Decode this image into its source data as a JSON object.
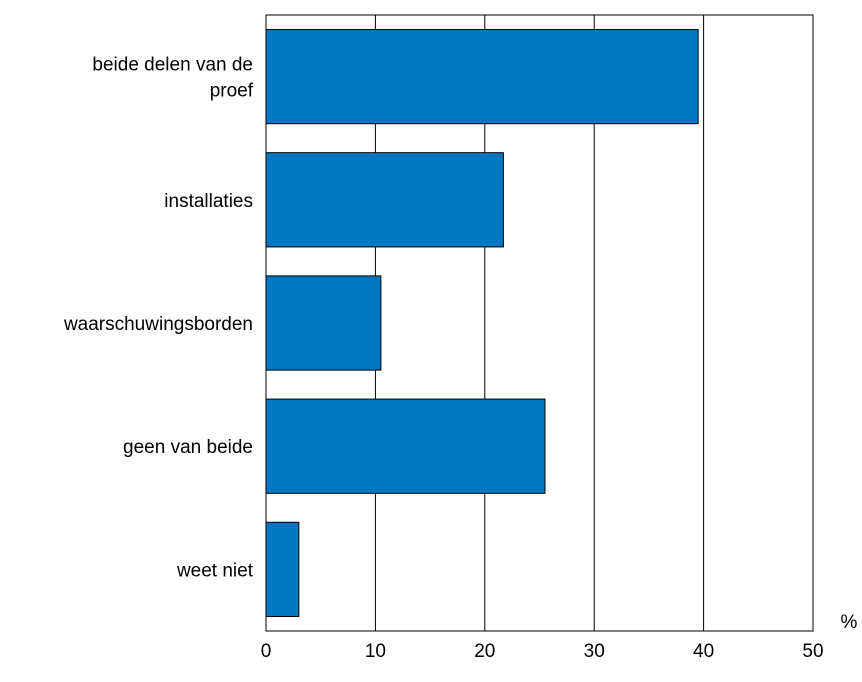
{
  "chart_data": {
    "type": "bar",
    "orientation": "horizontal",
    "categories": [
      [
        "beide delen van de",
        "proef"
      ],
      [
        "installaties"
      ],
      [
        "waarschuwingsborden"
      ],
      [
        "geen van beide"
      ],
      [
        "weet niet"
      ]
    ],
    "values": [
      39.5,
      21.7,
      10.5,
      25.5,
      3.0
    ],
    "xlim": [
      0,
      50
    ],
    "xticks": [
      0,
      10,
      20,
      30,
      40,
      50
    ],
    "unit_label": "%",
    "grid": "vertical",
    "colors": {
      "bar": "#0078c1",
      "outline": "#000000",
      "background": "#ffffff"
    }
  }
}
